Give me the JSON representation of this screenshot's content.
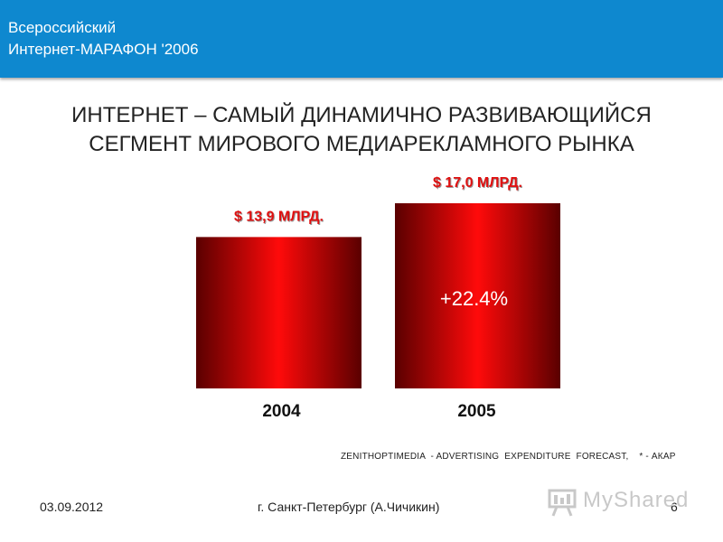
{
  "header": {
    "line1": "Всероссийский",
    "line2": "Интернет-МАРАФОН '2006"
  },
  "title": {
    "line1": "ИНТЕРНЕТ – САМЫЙ ДИНАМИЧНО РАЗВИВАЮЩИЙСЯ",
    "line2": "СЕГМЕНТ МИРОВОГО МЕДИАРЕКЛАМНОГО РЫНКА"
  },
  "chart_data": {
    "type": "bar",
    "categories": [
      "2004",
      "2005"
    ],
    "values": [
      13.9,
      17.0
    ],
    "data_labels": [
      "$ 13,9 МЛРД.",
      "$ 17,0 МЛРД."
    ],
    "annotation": "+22.4%",
    "ylim": [
      0,
      17.0
    ],
    "grid": false,
    "colors": {
      "bar_center": "#ff0a0a",
      "bar_edge": "#5a0000",
      "label": "#e01010"
    }
  },
  "source": "ZENITHOPTIMEDIA  - ADVERTISING  EXPENDITURE  FORECAST,    * - АКАР",
  "footer": {
    "date": "03.09.2012",
    "city": "г. Санкт-Петербург (А.Чичикин)",
    "page": "6"
  },
  "logo": {
    "text": "MyShared",
    "icon": "presentation-board-icon"
  }
}
